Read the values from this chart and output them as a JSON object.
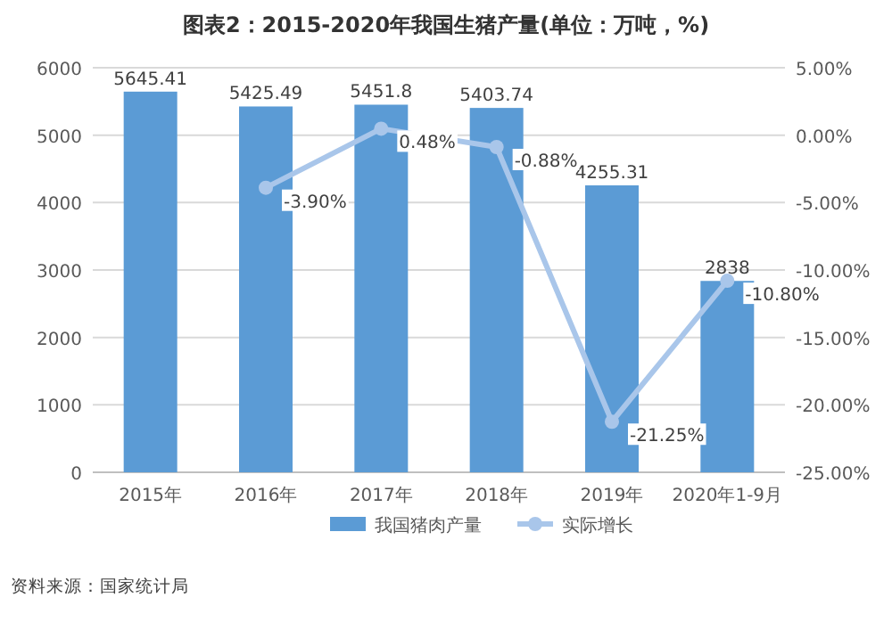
{
  "chart_data": {
    "type": "bar",
    "title": "图表2：2015-2020年我国生猪产量(单位：万吨，%)",
    "categories": [
      "2015年",
      "2016年",
      "2017年",
      "2018年",
      "2019年",
      "2020年1-9月"
    ],
    "series": [
      {
        "name": "我国猪肉产量",
        "axis": "y",
        "color": "#5b9bd5",
        "values": [
          5645.41,
          5425.49,
          5451.8,
          5403.74,
          4255.31,
          2838
        ],
        "value_labels": [
          "5645.41",
          "5425.49",
          "5451.8",
          "5403.74",
          "4255.31",
          "2838"
        ]
      },
      {
        "name": "实际增长",
        "type": "line",
        "axis": "y2",
        "color": "#a9c6ea",
        "marker": "circle",
        "values": [
          null,
          -3.9,
          0.48,
          -0.88,
          -21.25,
          -10.8
        ],
        "value_labels": [
          null,
          "-3.90%",
          "0.48%",
          "-0.88%",
          "-21.25%",
          "-10.80%"
        ]
      }
    ],
    "ylim": [
      0,
      6000
    ],
    "yticks": [
      0,
      1000,
      2000,
      3000,
      4000,
      5000,
      6000
    ],
    "y2lim": [
      -25,
      5
    ],
    "y2ticks": [
      {
        "value": 5,
        "label": "5.00%"
      },
      {
        "value": 0,
        "label": "0.00%"
      },
      {
        "value": -5,
        "label": "-5.00%"
      },
      {
        "value": -10,
        "label": "-10.00%"
      },
      {
        "value": -15,
        "label": "-15.00%"
      },
      {
        "value": -20,
        "label": "-20.00%"
      },
      {
        "value": -25,
        "label": "-25.00%"
      }
    ],
    "grid": "y",
    "legend": "bottom",
    "annotations": [
      "资料来源：国家统计局"
    ]
  }
}
